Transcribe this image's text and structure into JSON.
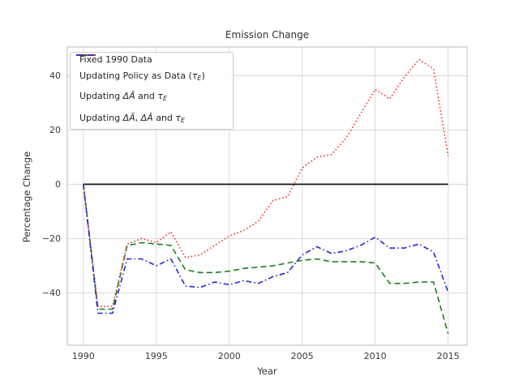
{
  "figure": {
    "background": "#ffffff",
    "text_color": "#333333"
  },
  "chart_data": {
    "type": "line",
    "title": "Emission Change",
    "xlabel": "Year",
    "ylabel": "Percentage Change",
    "grid": true,
    "grid_color": "#d9d9d9",
    "spine_color": "#c9c9c9",
    "legend_position": "upper-left",
    "xlim": [
      1988.9,
      2016.3
    ],
    "ylim": [
      -59.3,
      50.6
    ],
    "xticks": {
      "values": [
        1990,
        1995,
        2000,
        2005,
        2010,
        2015
      ],
      "labels": [
        "1990",
        "1995",
        "2000",
        "2005",
        "2010",
        "2015"
      ]
    },
    "yticks": {
      "values": [
        -40,
        -20,
        0,
        20,
        40
      ],
      "labels": [
        "−40",
        "−20",
        "0",
        "20",
        "40"
      ]
    },
    "x": [
      1990,
      1991,
      1992,
      1993,
      1994,
      1995,
      1996,
      1997,
      1998,
      1999,
      2000,
      2001,
      2002,
      2003,
      2004,
      2005,
      2006,
      2007,
      2008,
      2009,
      2010,
      2011,
      2012,
      2013,
      2014,
      2015
    ],
    "series": [
      {
        "name": "Fixed 1990 Data",
        "label_parts": [
          [
            "text",
            "Fixed 1990 Data"
          ]
        ],
        "color": "#141414",
        "dash": "solid",
        "width": 1.8,
        "values": [
          0,
          0,
          0,
          0,
          0,
          0,
          0,
          0,
          0,
          0,
          0,
          0,
          0,
          0,
          0,
          0,
          0,
          0,
          0,
          0,
          0,
          0,
          0,
          0,
          0,
          0
        ]
      },
      {
        "name": "Updating Policy as Data (tau_E)",
        "label_parts": [
          [
            "text",
            "Updating Policy as Data ("
          ],
          [
            "math",
            "τ"
          ],
          [
            "sub",
            "E"
          ],
          [
            "text",
            ")"
          ]
        ],
        "color": "#1c7c1c",
        "dash": "dashed",
        "width": 1.6,
        "values": [
          0,
          -46,
          -46,
          -22.5,
          -21.5,
          -22,
          -22.5,
          -31.5,
          -32.5,
          -32.5,
          -32,
          -31,
          -30.5,
          -30,
          -29,
          -28,
          -27.5,
          -28.5,
          -28.5,
          -28.5,
          -29,
          -36.5,
          -36.5,
          -36,
          -36,
          -55
        ]
      },
      {
        "name": "Updating ΔÂ and tau_E",
        "label_parts": [
          [
            "text",
            "Updating "
          ],
          [
            "math",
            "ΔÂ"
          ],
          [
            "text",
            " and "
          ],
          [
            "math",
            "τ"
          ],
          [
            "sub",
            "E"
          ]
        ],
        "color": "#ee3333",
        "dash": "dotted",
        "width": 1.6,
        "values": [
          0,
          -45,
          -45,
          -22,
          -20,
          -21.5,
          -17.5,
          -27,
          -26,
          -22.5,
          -19,
          -17,
          -13.5,
          -6,
          -4.5,
          6,
          10,
          11,
          17,
          26,
          35,
          31.5,
          39.5,
          46,
          42.5,
          10.5
        ]
      },
      {
        "name": "Updating ΔÃ, ΔÂ and tau_E",
        "label_parts": [
          [
            "text",
            "Updating "
          ],
          [
            "math",
            "ΔÃ"
          ],
          [
            "text",
            ", "
          ],
          [
            "math",
            "ΔÂ"
          ],
          [
            "text",
            " and "
          ],
          [
            "math",
            "τ"
          ],
          [
            "sub",
            "E"
          ]
        ],
        "color": "#2626d8",
        "dash": "dashdot",
        "width": 1.6,
        "values": [
          0,
          -47.5,
          -47.5,
          -27.5,
          -27.5,
          -30,
          -27.5,
          -37.5,
          -38,
          -36,
          -37,
          -35.5,
          -36.5,
          -34,
          -32.5,
          -26,
          -23,
          -25.5,
          -24.5,
          -22.5,
          -19.5,
          -23.5,
          -23.5,
          -22,
          -25,
          -39.7
        ]
      }
    ]
  }
}
